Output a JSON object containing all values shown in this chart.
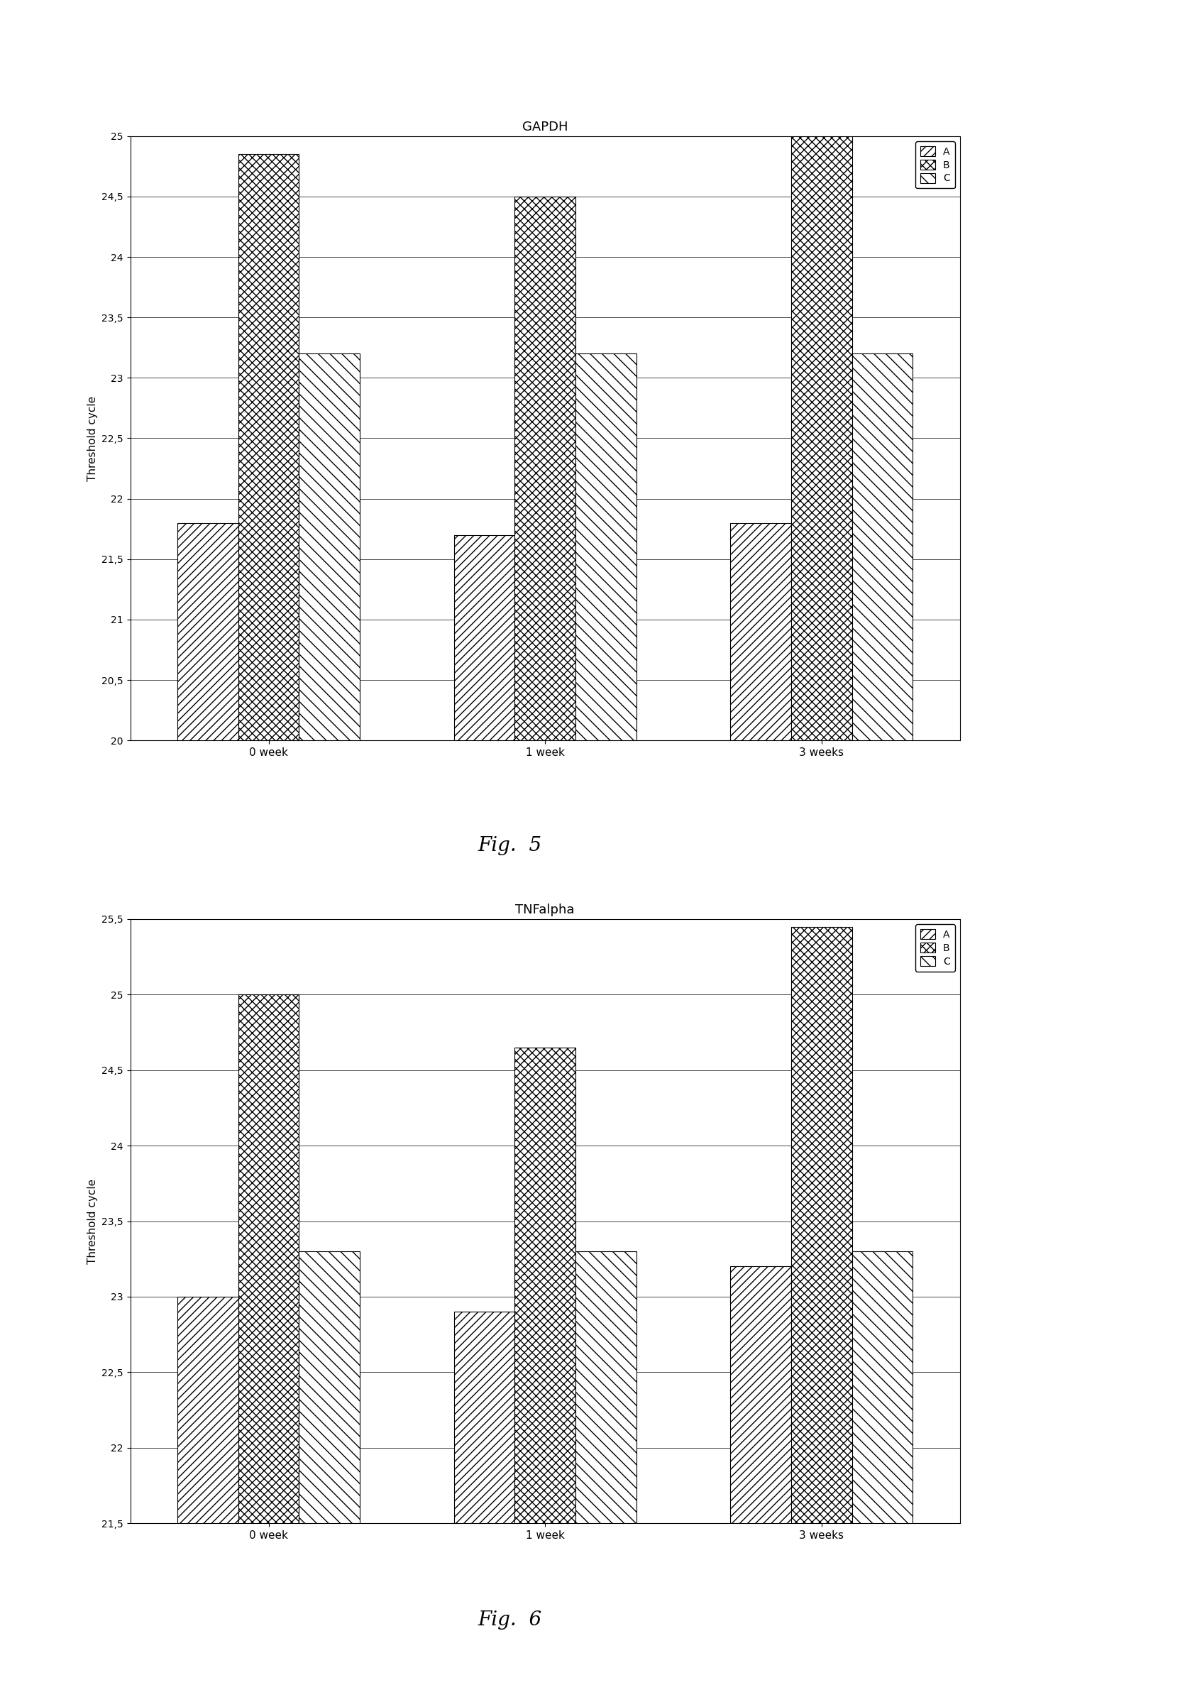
{
  "fig5": {
    "title": "GAPDH",
    "fig_label": "Fig.  5",
    "categories": [
      "0 week",
      "1 week",
      "3 weeks"
    ],
    "series_A": [
      21.8,
      21.7,
      21.8
    ],
    "series_B": [
      24.85,
      24.5,
      25.0
    ],
    "series_C": [
      23.2,
      23.2,
      23.2
    ],
    "ylim": [
      20,
      25
    ],
    "yticks": [
      20,
      20.5,
      21,
      21.5,
      22,
      22.5,
      23,
      23.5,
      24,
      24.5,
      25
    ],
    "ylabel": "Threshold cycle"
  },
  "fig6": {
    "title": "TNFalpha",
    "fig_label": "Fig.  6",
    "categories": [
      "0 week",
      "1 week",
      "3 weeks"
    ],
    "series_A": [
      23.0,
      22.9,
      23.2
    ],
    "series_B": [
      25.0,
      24.65,
      25.45
    ],
    "series_C": [
      23.3,
      23.3,
      23.3
    ],
    "ylim": [
      21.5,
      25.5
    ],
    "yticks": [
      21.5,
      22,
      22.5,
      23,
      23.5,
      24,
      24.5,
      25,
      25.5
    ],
    "ylabel": "Threshold cycle"
  },
  "bar_width": 0.22,
  "legend_labels": [
    "A",
    "B",
    "C"
  ],
  "background_color": "white",
  "fig_label_fontsize": 20,
  "title_fontsize": 13,
  "tick_fontsize": 10,
  "ylabel_fontsize": 11,
  "xlabel_fontsize": 11,
  "legend_fontsize": 10
}
